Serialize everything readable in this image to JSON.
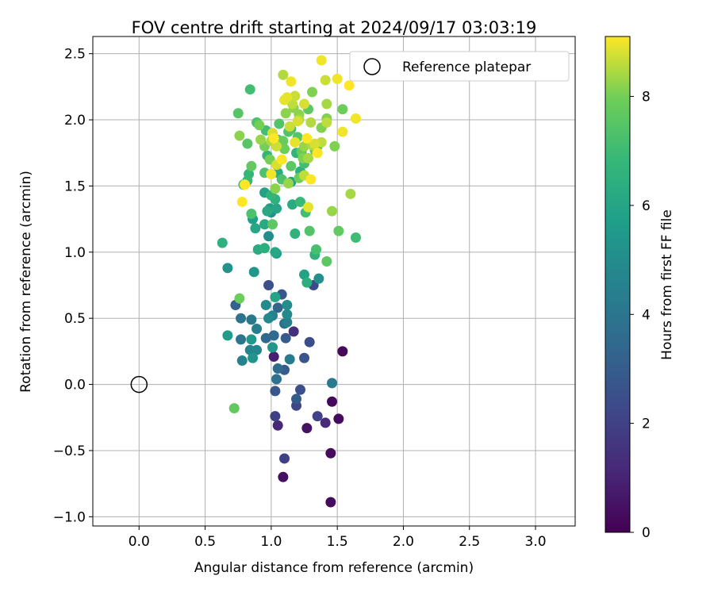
{
  "chart_data": {
    "type": "scatter",
    "title": "FOV centre drift starting at 2024/09/17 03:03:19",
    "xlabel": "Angular distance from reference (arcmin)",
    "ylabel": "Rotation from reference (arcmin)",
    "xlim": [
      -0.35,
      3.3
    ],
    "ylim": [
      -1.07,
      2.63
    ],
    "xticks": [
      "0.0",
      "0.5",
      "1.0",
      "1.5",
      "2.0",
      "2.5",
      "3.0"
    ],
    "yticks": [
      "-1.0",
      "-0.5",
      "0.0",
      "0.5",
      "1.0",
      "1.5",
      "2.0",
      "2.5"
    ],
    "grid": true,
    "legend": {
      "position": "top-right",
      "entries": [
        "Reference platepar"
      ]
    },
    "reference_point": {
      "x": 0.0,
      "y": 0.0,
      "marker": "open-circle"
    },
    "colorbar": {
      "label": "Hours from first FF file",
      "min": 0,
      "max": 9.1,
      "ticks": [
        "0",
        "2",
        "4",
        "6",
        "8"
      ],
      "colormap": "viridis"
    },
    "points": [
      {
        "x": 1.54,
        "y": 0.25,
        "h": 0.2
      },
      {
        "x": 1.46,
        "y": -0.13,
        "h": 0.2
      },
      {
        "x": 1.51,
        "y": -0.26,
        "h": 0.3
      },
      {
        "x": 1.45,
        "y": -0.52,
        "h": 0.3
      },
      {
        "x": 1.45,
        "y": -0.89,
        "h": 0.3
      },
      {
        "x": 1.09,
        "y": -0.7,
        "h": 0.4
      },
      {
        "x": 1.27,
        "y": -0.33,
        "h": 0.5
      },
      {
        "x": 1.02,
        "y": 0.21,
        "h": 0.9
      },
      {
        "x": 1.05,
        "y": -0.31,
        "h": 1.1
      },
      {
        "x": 1.41,
        "y": -0.29,
        "h": 1.2
      },
      {
        "x": 1.17,
        "y": 0.4,
        "h": 1.4
      },
      {
        "x": 1.03,
        "y": -0.24,
        "h": 2.0
      },
      {
        "x": 1.1,
        "y": -0.56,
        "h": 2.0
      },
      {
        "x": 1.35,
        "y": -0.24,
        "h": 2.1
      },
      {
        "x": 1.19,
        "y": -0.16,
        "h": 2.2
      },
      {
        "x": 1.32,
        "y": 0.75,
        "h": 2.3
      },
      {
        "x": 1.29,
        "y": 0.32,
        "h": 2.4
      },
      {
        "x": 0.98,
        "y": 0.75,
        "h": 2.5
      },
      {
        "x": 1.22,
        "y": -0.04,
        "h": 2.5
      },
      {
        "x": 1.25,
        "y": 0.2,
        "h": 2.7
      },
      {
        "x": 1.08,
        "y": 0.68,
        "h": 2.8
      },
      {
        "x": 1.03,
        "y": -0.05,
        "h": 2.8
      },
      {
        "x": 1.19,
        "y": -0.11,
        "h": 2.9
      },
      {
        "x": 1.11,
        "y": 0.35,
        "h": 2.9
      },
      {
        "x": 1.1,
        "y": 0.11,
        "h": 3.0
      },
      {
        "x": 0.73,
        "y": 0.6,
        "h": 3.2
      },
      {
        "x": 1.05,
        "y": 0.58,
        "h": 3.3
      },
      {
        "x": 0.96,
        "y": 0.35,
        "h": 3.4
      },
      {
        "x": 1.02,
        "y": 0.37,
        "h": 3.5
      },
      {
        "x": 1.05,
        "y": 0.12,
        "h": 3.6
      },
      {
        "x": 1.1,
        "y": 0.46,
        "h": 3.7
      },
      {
        "x": 1.04,
        "y": 0.04,
        "h": 3.8
      },
      {
        "x": 0.77,
        "y": 0.5,
        "h": 3.9
      },
      {
        "x": 0.77,
        "y": 0.34,
        "h": 4.0
      },
      {
        "x": 0.85,
        "y": 0.49,
        "h": 4.1
      },
      {
        "x": 1.46,
        "y": 0.01,
        "h": 4.2
      },
      {
        "x": 1.14,
        "y": 0.19,
        "h": 4.3
      },
      {
        "x": 0.89,
        "y": 0.42,
        "h": 4.4
      },
      {
        "x": 1.12,
        "y": 0.47,
        "h": 4.4
      },
      {
        "x": 1.01,
        "y": 0.52,
        "h": 4.5
      },
      {
        "x": 0.78,
        "y": 0.18,
        "h": 4.6
      },
      {
        "x": 0.84,
        "y": 0.26,
        "h": 4.6
      },
      {
        "x": 0.89,
        "y": 0.26,
        "h": 4.7
      },
      {
        "x": 0.98,
        "y": 0.5,
        "h": 4.8
      },
      {
        "x": 1.12,
        "y": 0.53,
        "h": 4.8
      },
      {
        "x": 0.96,
        "y": 0.6,
        "h": 4.9
      },
      {
        "x": 1.12,
        "y": 0.6,
        "h": 5.0
      },
      {
        "x": 0.98,
        "y": 1.12,
        "h": 5.0
      },
      {
        "x": 1.36,
        "y": 0.8,
        "h": 5.1
      },
      {
        "x": 1.0,
        "y": 1.3,
        "h": 5.1
      },
      {
        "x": 0.67,
        "y": 0.88,
        "h": 5.2
      },
      {
        "x": 0.86,
        "y": 0.2,
        "h": 5.3
      },
      {
        "x": 1.01,
        "y": 0.28,
        "h": 5.4
      },
      {
        "x": 0.87,
        "y": 0.85,
        "h": 5.4
      },
      {
        "x": 0.85,
        "y": 0.34,
        "h": 5.5
      },
      {
        "x": 0.67,
        "y": 0.37,
        "h": 5.6
      },
      {
        "x": 0.99,
        "y": 1.33,
        "h": 5.6
      },
      {
        "x": 1.04,
        "y": 0.99,
        "h": 5.7
      },
      {
        "x": 1.15,
        "y": 1.53,
        "h": 5.8
      },
      {
        "x": 0.86,
        "y": 1.25,
        "h": 5.8
      },
      {
        "x": 0.95,
        "y": 1.45,
        "h": 5.9
      },
      {
        "x": 1.25,
        "y": 0.83,
        "h": 5.9
      },
      {
        "x": 1.03,
        "y": 0.66,
        "h": 6.0
      },
      {
        "x": 1.04,
        "y": 1.33,
        "h": 6.0
      },
      {
        "x": 1.03,
        "y": 1.0,
        "h": 6.1
      },
      {
        "x": 0.88,
        "y": 1.18,
        "h": 6.1
      },
      {
        "x": 0.97,
        "y": 1.31,
        "h": 6.2
      },
      {
        "x": 0.95,
        "y": 1.21,
        "h": 6.2
      },
      {
        "x": 0.9,
        "y": 1.02,
        "h": 6.3
      },
      {
        "x": 1.16,
        "y": 1.36,
        "h": 6.3
      },
      {
        "x": 1.05,
        "y": 1.6,
        "h": 6.3
      },
      {
        "x": 0.95,
        "y": 1.03,
        "h": 6.4
      },
      {
        "x": 1.27,
        "y": 0.77,
        "h": 6.4
      },
      {
        "x": 1.22,
        "y": 1.61,
        "h": 6.5
      },
      {
        "x": 0.63,
        "y": 1.07,
        "h": 6.5
      },
      {
        "x": 1.03,
        "y": 1.4,
        "h": 6.5
      },
      {
        "x": 1.33,
        "y": 0.98,
        "h": 6.6
      },
      {
        "x": 1.18,
        "y": 1.14,
        "h": 6.6
      },
      {
        "x": 1.0,
        "y": 1.43,
        "h": 6.7
      },
      {
        "x": 1.19,
        "y": 1.75,
        "h": 6.7
      },
      {
        "x": 0.97,
        "y": 1.73,
        "h": 6.8
      },
      {
        "x": 0.83,
        "y": 1.59,
        "h": 6.8
      },
      {
        "x": 0.82,
        "y": 1.54,
        "h": 6.9
      },
      {
        "x": 1.22,
        "y": 1.38,
        "h": 6.9
      },
      {
        "x": 0.79,
        "y": 1.51,
        "h": 7.0
      },
      {
        "x": 1.05,
        "y": 1.85,
        "h": 7.0
      },
      {
        "x": 1.64,
        "y": 1.11,
        "h": 7.0
      },
      {
        "x": 0.96,
        "y": 1.92,
        "h": 7.1
      },
      {
        "x": 1.25,
        "y": 1.67,
        "h": 7.1
      },
      {
        "x": 0.84,
        "y": 2.23,
        "h": 7.1
      },
      {
        "x": 1.26,
        "y": 1.3,
        "h": 7.1
      },
      {
        "x": 1.34,
        "y": 1.02,
        "h": 7.2
      },
      {
        "x": 1.15,
        "y": 1.93,
        "h": 7.2
      },
      {
        "x": 0.95,
        "y": 1.6,
        "h": 7.3
      },
      {
        "x": 1.08,
        "y": 1.55,
        "h": 7.3
      },
      {
        "x": 0.89,
        "y": 1.98,
        "h": 7.3
      },
      {
        "x": 0.85,
        "y": 1.29,
        "h": 7.3
      },
      {
        "x": 1.06,
        "y": 1.97,
        "h": 7.4
      },
      {
        "x": 1.29,
        "y": 1.16,
        "h": 7.4
      },
      {
        "x": 1.13,
        "y": 1.91,
        "h": 7.4
      },
      {
        "x": 0.75,
        "y": 2.05,
        "h": 7.5
      },
      {
        "x": 0.82,
        "y": 1.82,
        "h": 7.5
      },
      {
        "x": 1.2,
        "y": 1.87,
        "h": 7.5
      },
      {
        "x": 1.35,
        "y": 1.8,
        "h": 7.5
      },
      {
        "x": 1.15,
        "y": 1.65,
        "h": 7.6
      },
      {
        "x": 1.28,
        "y": 2.08,
        "h": 7.6
      },
      {
        "x": 1.42,
        "y": 0.93,
        "h": 7.6
      },
      {
        "x": 1.01,
        "y": 1.21,
        "h": 7.6
      },
      {
        "x": 1.51,
        "y": 1.16,
        "h": 7.7
      },
      {
        "x": 0.72,
        "y": -0.18,
        "h": 7.7
      },
      {
        "x": 0.85,
        "y": 1.65,
        "h": 7.7
      },
      {
        "x": 1.09,
        "y": 1.84,
        "h": 7.8
      },
      {
        "x": 1.33,
        "y": 1.77,
        "h": 7.8
      },
      {
        "x": 1.05,
        "y": 1.84,
        "h": 7.8
      },
      {
        "x": 1.23,
        "y": 1.76,
        "h": 7.8
      },
      {
        "x": 0.76,
        "y": 0.65,
        "h": 7.9
      },
      {
        "x": 1.1,
        "y": 1.78,
        "h": 7.9
      },
      {
        "x": 1.21,
        "y": 1.56,
        "h": 7.9
      },
      {
        "x": 1.54,
        "y": 2.08,
        "h": 7.9
      },
      {
        "x": 0.99,
        "y": 1.7,
        "h": 8.0
      },
      {
        "x": 1.38,
        "y": 1.94,
        "h": 8.0
      },
      {
        "x": 0.95,
        "y": 1.8,
        "h": 8.0
      },
      {
        "x": 0.91,
        "y": 1.96,
        "h": 8.0
      },
      {
        "x": 1.48,
        "y": 1.8,
        "h": 8.1
      },
      {
        "x": 1.31,
        "y": 2.21,
        "h": 8.1
      },
      {
        "x": 1.42,
        "y": 2.01,
        "h": 8.1
      },
      {
        "x": 1.38,
        "y": 1.94,
        "h": 8.1
      },
      {
        "x": 1.24,
        "y": 1.71,
        "h": 8.1
      },
      {
        "x": 0.76,
        "y": 1.88,
        "h": 8.2
      },
      {
        "x": 1.03,
        "y": 1.48,
        "h": 8.2
      },
      {
        "x": 1.17,
        "y": 2.09,
        "h": 8.2
      },
      {
        "x": 1.21,
        "y": 2.04,
        "h": 8.2
      },
      {
        "x": 1.11,
        "y": 2.05,
        "h": 8.2
      },
      {
        "x": 0.92,
        "y": 1.85,
        "h": 8.3
      },
      {
        "x": 1.25,
        "y": 1.8,
        "h": 8.3
      },
      {
        "x": 1.13,
        "y": 1.52,
        "h": 8.3
      },
      {
        "x": 1.46,
        "y": 1.31,
        "h": 8.3
      },
      {
        "x": 1.42,
        "y": 2.12,
        "h": 8.4
      },
      {
        "x": 1.21,
        "y": 2.0,
        "h": 8.4
      },
      {
        "x": 1.28,
        "y": 1.71,
        "h": 8.4
      },
      {
        "x": 1.6,
        "y": 1.44,
        "h": 8.4
      },
      {
        "x": 1.31,
        "y": 1.81,
        "h": 8.5
      },
      {
        "x": 1.0,
        "y": 1.84,
        "h": 8.5
      },
      {
        "x": 1.09,
        "y": 2.34,
        "h": 8.5
      },
      {
        "x": 1.3,
        "y": 1.98,
        "h": 8.5
      },
      {
        "x": 1.38,
        "y": 1.83,
        "h": 8.6
      },
      {
        "x": 1.42,
        "y": 1.98,
        "h": 8.6
      },
      {
        "x": 1.16,
        "y": 2.12,
        "h": 8.6
      },
      {
        "x": 1.25,
        "y": 1.58,
        "h": 8.6
      },
      {
        "x": 1.04,
        "y": 1.8,
        "h": 8.7
      },
      {
        "x": 1.18,
        "y": 2.18,
        "h": 8.7
      },
      {
        "x": 1.41,
        "y": 2.3,
        "h": 8.7
      },
      {
        "x": 1.14,
        "y": 1.95,
        "h": 8.7
      },
      {
        "x": 1.33,
        "y": 1.82,
        "h": 8.8
      },
      {
        "x": 1.01,
        "y": 1.9,
        "h": 8.8
      },
      {
        "x": 1.2,
        "y": 1.99,
        "h": 8.8
      },
      {
        "x": 1.25,
        "y": 2.12,
        "h": 8.8
      },
      {
        "x": 1.04,
        "y": 1.66,
        "h": 8.8
      },
      {
        "x": 1.12,
        "y": 2.17,
        "h": 8.9
      },
      {
        "x": 1.28,
        "y": 1.34,
        "h": 8.9
      },
      {
        "x": 1.18,
        "y": 1.83,
        "h": 8.9
      },
      {
        "x": 1.1,
        "y": 2.15,
        "h": 8.9
      },
      {
        "x": 1.54,
        "y": 1.91,
        "h": 9.0
      },
      {
        "x": 1.0,
        "y": 1.59,
        "h": 9.0
      },
      {
        "x": 1.64,
        "y": 2.01,
        "h": 9.0
      },
      {
        "x": 1.38,
        "y": 2.45,
        "h": 9.0
      },
      {
        "x": 1.15,
        "y": 2.29,
        "h": 9.0
      },
      {
        "x": 1.5,
        "y": 2.31,
        "h": 9.0
      },
      {
        "x": 0.8,
        "y": 1.51,
        "h": 9.1
      },
      {
        "x": 1.02,
        "y": 1.86,
        "h": 9.1
      },
      {
        "x": 1.08,
        "y": 1.7,
        "h": 9.1
      },
      {
        "x": 1.27,
        "y": 1.86,
        "h": 9.1
      },
      {
        "x": 1.3,
        "y": 1.55,
        "h": 9.1
      },
      {
        "x": 1.59,
        "y": 2.26,
        "h": 9.1
      },
      {
        "x": 0.78,
        "y": 1.38,
        "h": 9.1
      },
      {
        "x": 1.35,
        "y": 1.75,
        "h": 9.1
      }
    ]
  }
}
